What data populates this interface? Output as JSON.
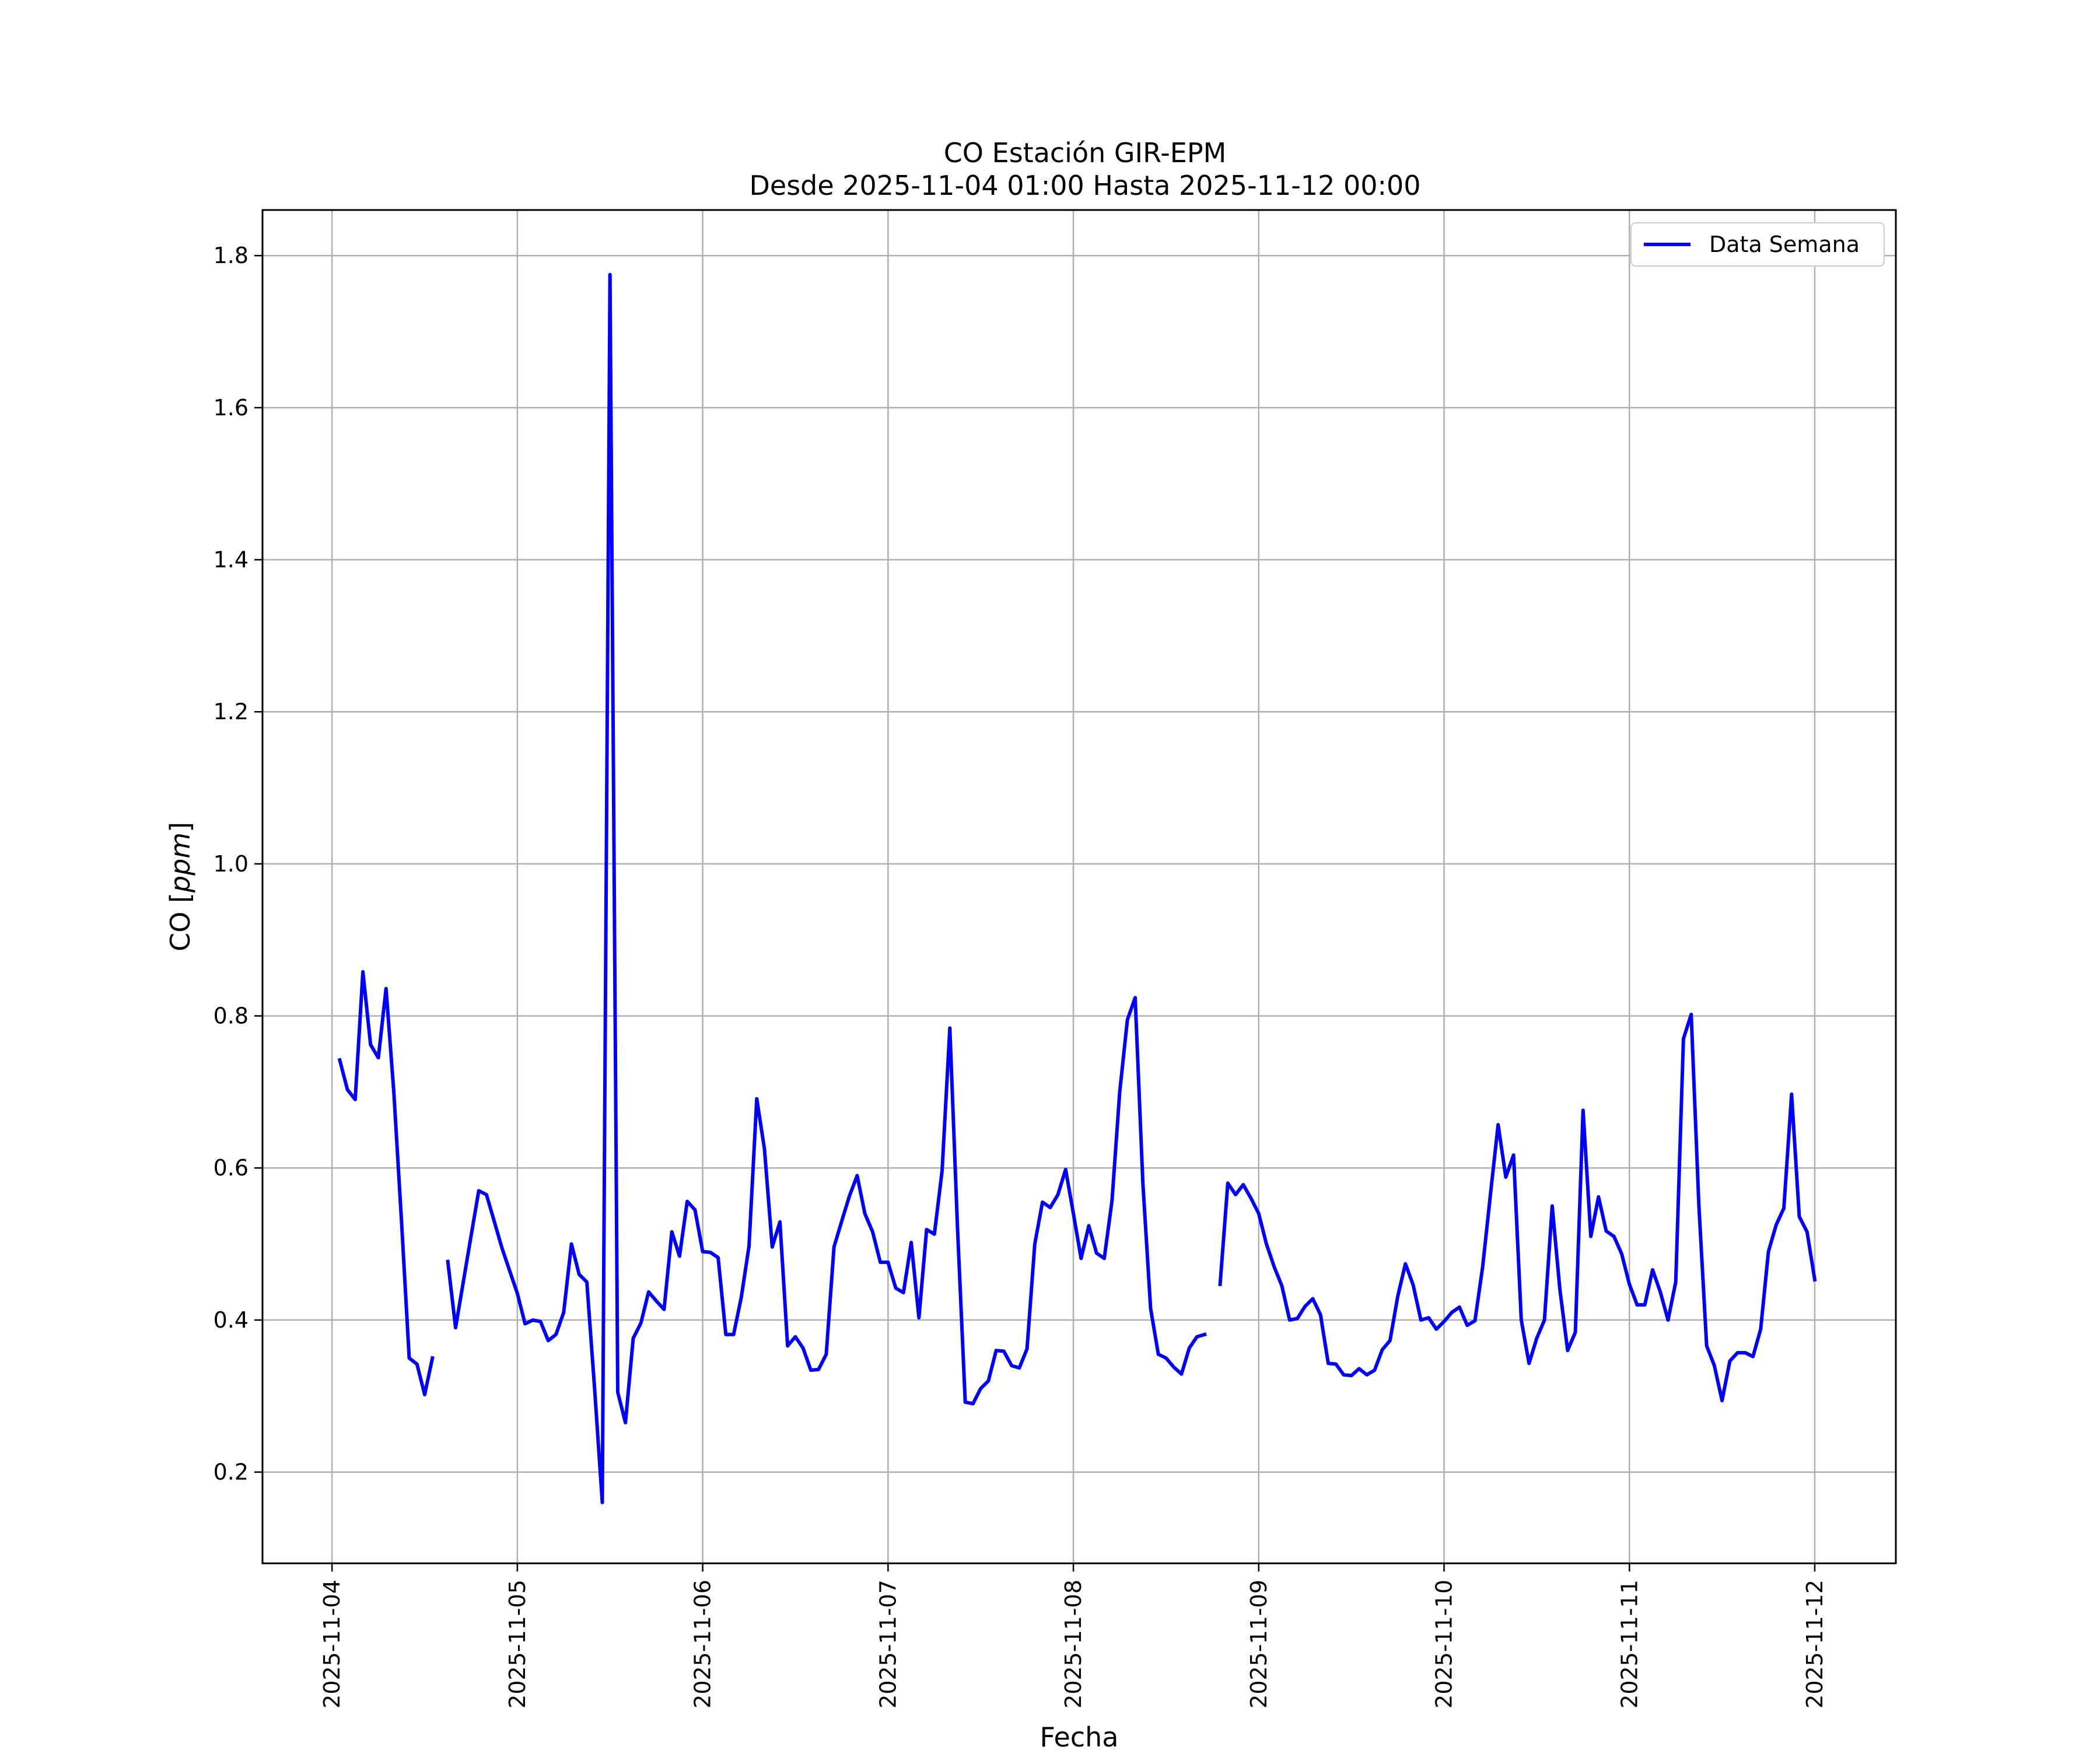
{
  "chart_data": {
    "type": "line",
    "title": "CO Estación GIR-EPM",
    "subtitle": "Desde 2025-11-04 01:00 Hasta 2025-11-12 00:00",
    "xlabel": "Fecha",
    "ylabel": "CO [ppm]",
    "ylabel_base": "CO [",
    "ylabel_unit": "ppm",
    "ylabel_close": "]",
    "xlim": [
      "2025-11-03 15:00",
      "2025-11-12 10:30"
    ],
    "ylim": [
      0.08,
      1.86
    ],
    "xticks": [
      "2025-11-04",
      "2025-11-05",
      "2025-11-06",
      "2025-11-07",
      "2025-11-08",
      "2025-11-09",
      "2025-11-10",
      "2025-11-11",
      "2025-11-12"
    ],
    "yticks": [
      0.2,
      0.4,
      0.6,
      0.8,
      1.0,
      1.2,
      1.4,
      1.6,
      1.8
    ],
    "ytick_labels": [
      "0.2",
      "0.4",
      "0.6",
      "0.8",
      "1.0",
      "1.2",
      "1.4",
      "1.6",
      "1.8"
    ],
    "grid": true,
    "legend_position": "top-right",
    "colors": {
      "series": "#0000ff",
      "grid": "#b0b0b0",
      "axes": "#000000"
    },
    "series": [
      {
        "name": "Data Semana",
        "segments": [
          [
            [
              "2025-11-04 01:00",
              0.742
            ],
            [
              "2025-11-04 02:00",
              0.703
            ],
            [
              "2025-11-04 03:00",
              0.69
            ],
            [
              "2025-11-04 04:00",
              0.858
            ],
            [
              "2025-11-04 05:00",
              0.762
            ],
            [
              "2025-11-04 06:00",
              0.745
            ],
            [
              "2025-11-04 07:00",
              0.836
            ],
            [
              "2025-11-04 08:00",
              0.7
            ],
            [
              "2025-11-04 09:00",
              0.53
            ],
            [
              "2025-11-04 10:00",
              0.35
            ],
            [
              "2025-11-04 11:00",
              0.342
            ],
            [
              "2025-11-04 12:00",
              0.302
            ],
            [
              "2025-11-04 13:00",
              0.35
            ]
          ],
          [
            [
              "2025-11-04 15:00",
              0.477
            ],
            [
              "2025-11-04 16:00",
              0.39
            ],
            [
              "2025-11-04 17:00",
              0.45
            ],
            [
              "2025-11-04 18:00",
              0.51
            ],
            [
              "2025-11-04 19:00",
              0.57
            ],
            [
              "2025-11-04 20:00",
              0.565
            ],
            [
              "2025-11-04 21:00",
              0.53
            ],
            [
              "2025-11-04 22:00",
              0.495
            ],
            [
              "2025-11-04 23:00",
              0.465
            ],
            [
              "2025-11-05 00:00",
              0.435
            ],
            [
              "2025-11-05 01:00",
              0.395
            ],
            [
              "2025-11-05 02:00",
              0.4
            ],
            [
              "2025-11-05 03:00",
              0.398
            ],
            [
              "2025-11-05 04:00",
              0.373
            ],
            [
              "2025-11-05 05:00",
              0.381
            ],
            [
              "2025-11-05 06:00",
              0.41
            ],
            [
              "2025-11-05 07:00",
              0.5
            ],
            [
              "2025-11-05 08:00",
              0.46
            ],
            [
              "2025-11-05 09:00",
              0.45
            ],
            [
              "2025-11-05 10:00",
              0.31
            ],
            [
              "2025-11-05 11:00",
              0.16
            ],
            [
              "2025-11-05 12:00",
              1.775
            ],
            [
              "2025-11-05 13:00",
              0.305
            ],
            [
              "2025-11-05 14:00",
              0.265
            ],
            [
              "2025-11-05 15:00",
              0.376
            ],
            [
              "2025-11-05 16:00",
              0.396
            ],
            [
              "2025-11-05 17:00",
              0.437
            ],
            [
              "2025-11-05 18:00",
              0.425
            ],
            [
              "2025-11-05 19:00",
              0.414
            ],
            [
              "2025-11-05 20:00",
              0.516
            ],
            [
              "2025-11-05 21:00",
              0.484
            ],
            [
              "2025-11-05 22:00",
              0.556
            ],
            [
              "2025-11-05 23:00",
              0.545
            ],
            [
              "2025-11-06 00:00",
              0.49
            ],
            [
              "2025-11-06 01:00",
              0.489
            ],
            [
              "2025-11-06 02:00",
              0.482
            ],
            [
              "2025-11-06 03:00",
              0.381
            ],
            [
              "2025-11-06 04:00",
              0.381
            ],
            [
              "2025-11-06 05:00",
              0.43
            ],
            [
              "2025-11-06 06:00",
              0.497
            ],
            [
              "2025-11-06 07:00",
              0.691
            ],
            [
              "2025-11-06 08:00",
              0.625
            ],
            [
              "2025-11-06 09:00",
              0.496
            ],
            [
              "2025-11-06 10:00",
              0.529
            ],
            [
              "2025-11-06 11:00",
              0.366
            ],
            [
              "2025-11-06 12:00",
              0.378
            ],
            [
              "2025-11-06 13:00",
              0.363
            ],
            [
              "2025-11-06 14:00",
              0.334
            ],
            [
              "2025-11-06 15:00",
              0.335
            ],
            [
              "2025-11-06 16:00",
              0.355
            ],
            [
              "2025-11-06 17:00",
              0.496
            ],
            [
              "2025-11-06 18:00",
              0.53
            ],
            [
              "2025-11-06 19:00",
              0.563
            ],
            [
              "2025-11-06 20:00",
              0.59
            ],
            [
              "2025-11-06 21:00",
              0.54
            ],
            [
              "2025-11-06 22:00",
              0.516
            ],
            [
              "2025-11-06 23:00",
              0.476
            ],
            [
              "2025-11-07 00:00",
              0.476
            ],
            [
              "2025-11-07 01:00",
              0.442
            ],
            [
              "2025-11-07 02:00",
              0.436
            ],
            [
              "2025-11-07 03:00",
              0.502
            ],
            [
              "2025-11-07 04:00",
              0.403
            ],
            [
              "2025-11-07 05:00",
              0.519
            ],
            [
              "2025-11-07 06:00",
              0.513
            ],
            [
              "2025-11-07 07:00",
              0.596
            ],
            [
              "2025-11-07 08:00",
              0.784
            ],
            [
              "2025-11-07 09:00",
              0.52
            ],
            [
              "2025-11-07 10:00",
              0.292
            ],
            [
              "2025-11-07 11:00",
              0.29
            ],
            [
              "2025-11-07 12:00",
              0.31
            ],
            [
              "2025-11-07 13:00",
              0.32
            ],
            [
              "2025-11-07 14:00",
              0.36
            ],
            [
              "2025-11-07 15:00",
              0.359
            ],
            [
              "2025-11-07 16:00",
              0.34
            ],
            [
              "2025-11-07 17:00",
              0.337
            ],
            [
              "2025-11-07 18:00",
              0.362
            ],
            [
              "2025-11-07 19:00",
              0.5
            ],
            [
              "2025-11-07 20:00",
              0.555
            ],
            [
              "2025-11-07 21:00",
              0.548
            ],
            [
              "2025-11-07 22:00",
              0.565
            ],
            [
              "2025-11-07 23:00",
              0.598
            ],
            [
              "2025-11-08 00:00",
              0.54
            ],
            [
              "2025-11-08 01:00",
              0.481
            ],
            [
              "2025-11-08 02:00",
              0.524
            ],
            [
              "2025-11-08 03:00",
              0.488
            ],
            [
              "2025-11-08 04:00",
              0.481
            ],
            [
              "2025-11-08 05:00",
              0.557
            ],
            [
              "2025-11-08 06:00",
              0.7
            ],
            [
              "2025-11-08 07:00",
              0.795
            ],
            [
              "2025-11-08 08:00",
              0.824
            ],
            [
              "2025-11-08 09:00",
              0.58
            ],
            [
              "2025-11-08 10:00",
              0.415
            ],
            [
              "2025-11-08 11:00",
              0.355
            ],
            [
              "2025-11-08 12:00",
              0.35
            ],
            [
              "2025-11-08 13:00",
              0.338
            ],
            [
              "2025-11-08 14:00",
              0.329
            ],
            [
              "2025-11-08 15:00",
              0.363
            ],
            [
              "2025-11-08 16:00",
              0.378
            ],
            [
              "2025-11-08 17:00",
              0.381
            ]
          ],
          [
            [
              "2025-11-08 19:00",
              0.447
            ],
            [
              "2025-11-08 20:00",
              0.58
            ],
            [
              "2025-11-08 21:00",
              0.565
            ],
            [
              "2025-11-08 22:00",
              0.578
            ],
            [
              "2025-11-08 23:00",
              0.56
            ],
            [
              "2025-11-09 00:00",
              0.54
            ],
            [
              "2025-11-09 01:00",
              0.5
            ],
            [
              "2025-11-09 02:00",
              0.47
            ],
            [
              "2025-11-09 03:00",
              0.445
            ],
            [
              "2025-11-09 04:00",
              0.4
            ],
            [
              "2025-11-09 05:00",
              0.402
            ],
            [
              "2025-11-09 06:00",
              0.418
            ],
            [
              "2025-11-09 07:00",
              0.428
            ],
            [
              "2025-11-09 08:00",
              0.407
            ],
            [
              "2025-11-09 09:00",
              0.343
            ],
            [
              "2025-11-09 10:00",
              0.342
            ],
            [
              "2025-11-09 11:00",
              0.328
            ],
            [
              "2025-11-09 12:00",
              0.327
            ],
            [
              "2025-11-09 13:00",
              0.336
            ],
            [
              "2025-11-09 14:00",
              0.328
            ],
            [
              "2025-11-09 15:00",
              0.334
            ],
            [
              "2025-11-09 16:00",
              0.361
            ],
            [
              "2025-11-09 17:00",
              0.373
            ],
            [
              "2025-11-09 18:00",
              0.431
            ],
            [
              "2025-11-09 19:00",
              0.474
            ],
            [
              "2025-11-09 20:00",
              0.446
            ],
            [
              "2025-11-09 21:00",
              0.4
            ],
            [
              "2025-11-09 22:00",
              0.403
            ],
            [
              "2025-11-09 23:00",
              0.388
            ],
            [
              "2025-11-10 00:00",
              0.398
            ],
            [
              "2025-11-10 01:00",
              0.41
            ],
            [
              "2025-11-10 02:00",
              0.417
            ],
            [
              "2025-11-10 03:00",
              0.393
            ],
            [
              "2025-11-10 04:00",
              0.399
            ],
            [
              "2025-11-10 05:00",
              0.47
            ],
            [
              "2025-11-10 06:00",
              0.565
            ],
            [
              "2025-11-10 07:00",
              0.657
            ],
            [
              "2025-11-10 08:00",
              0.588
            ],
            [
              "2025-11-10 09:00",
              0.617
            ],
            [
              "2025-11-10 10:00",
              0.4
            ],
            [
              "2025-11-10 11:00",
              0.343
            ],
            [
              "2025-11-10 12:00",
              0.376
            ],
            [
              "2025-11-10 13:00",
              0.4
            ],
            [
              "2025-11-10 14:00",
              0.55
            ],
            [
              "2025-11-10 15:00",
              0.44
            ],
            [
              "2025-11-10 16:00",
              0.36
            ],
            [
              "2025-11-10 17:00",
              0.384
            ],
            [
              "2025-11-10 18:00",
              0.676
            ],
            [
              "2025-11-10 19:00",
              0.51
            ],
            [
              "2025-11-10 20:00",
              0.562
            ],
            [
              "2025-11-10 21:00",
              0.517
            ],
            [
              "2025-11-10 22:00",
              0.51
            ],
            [
              "2025-11-10 23:00",
              0.487
            ],
            [
              "2025-11-11 00:00",
              0.447
            ],
            [
              "2025-11-11 01:00",
              0.42
            ],
            [
              "2025-11-11 02:00",
              0.42
            ],
            [
              "2025-11-11 03:00",
              0.466
            ],
            [
              "2025-11-11 04:00",
              0.437
            ],
            [
              "2025-11-11 05:00",
              0.4
            ],
            [
              "2025-11-11 06:00",
              0.45
            ],
            [
              "2025-11-11 07:00",
              0.77
            ],
            [
              "2025-11-11 08:00",
              0.802
            ],
            [
              "2025-11-11 09:00",
              0.55
            ],
            [
              "2025-11-11 10:00",
              0.366
            ],
            [
              "2025-11-11 11:00",
              0.34
            ],
            [
              "2025-11-11 12:00",
              0.294
            ],
            [
              "2025-11-11 13:00",
              0.346
            ],
            [
              "2025-11-11 14:00",
              0.357
            ],
            [
              "2025-11-11 15:00",
              0.357
            ],
            [
              "2025-11-11 16:00",
              0.352
            ],
            [
              "2025-11-11 17:00",
              0.388
            ],
            [
              "2025-11-11 18:00",
              0.49
            ],
            [
              "2025-11-11 19:00",
              0.525
            ],
            [
              "2025-11-11 20:00",
              0.547
            ],
            [
              "2025-11-11 21:00",
              0.697
            ],
            [
              "2025-11-11 22:00",
              0.536
            ],
            [
              "2025-11-11 23:00",
              0.516
            ],
            [
              "2025-11-12 00:00",
              0.453
            ]
          ]
        ]
      }
    ]
  }
}
